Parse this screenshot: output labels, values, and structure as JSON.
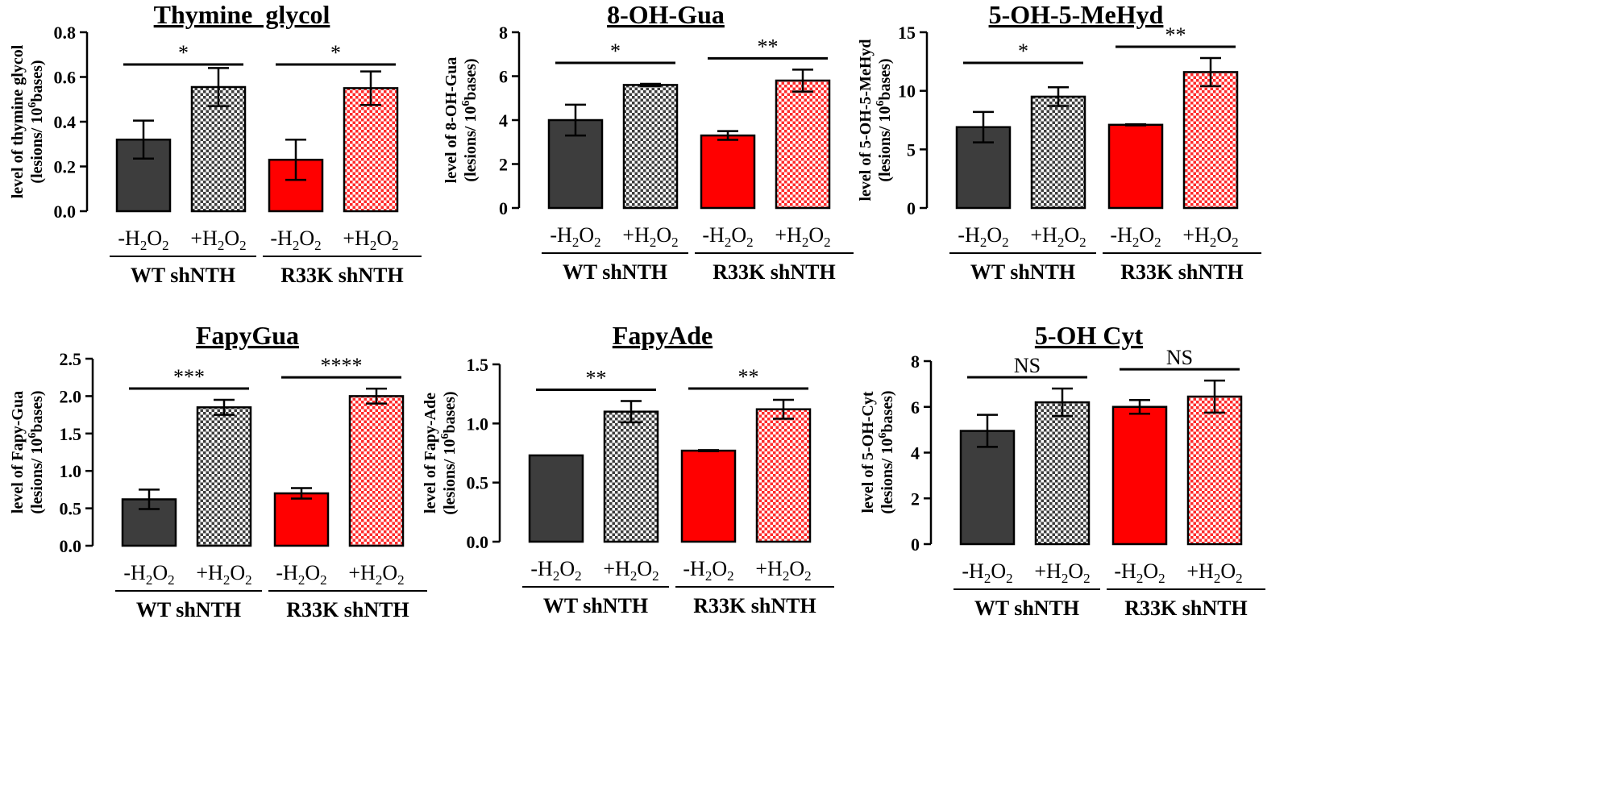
{
  "figure": {
    "categories": [
      "-H2O2",
      "+H2O2",
      "-H2O2",
      "+H2O2"
    ],
    "groups": [
      "WT shNTH",
      "R33K shNTH"
    ],
    "series_fill": [
      {
        "color": "#3d3d3d",
        "pattern": "solid"
      },
      {
        "color": "#3d3d3d",
        "pattern": "checker"
      },
      {
        "color": "#ff0000",
        "pattern": "solid"
      },
      {
        "color": "#ff0000",
        "pattern": "checker"
      }
    ]
  },
  "chart_data": [
    {
      "type": "bar",
      "title": "Thymine  glycol",
      "ylabel_1": "level of thymine glycol",
      "ylabel_2": "(lesions/ 10",
      "ylabel_exp": "6",
      "ylabel_3": "bases)",
      "ylim": [
        0,
        0.8
      ],
      "yticks": [
        0,
        0.2,
        0.4,
        0.6,
        0.8
      ],
      "tick_labels": [
        "0.0",
        "0.2",
        "0.4",
        "0.6",
        "0.8"
      ],
      "values": [
        0.32,
        0.555,
        0.23,
        0.55
      ],
      "errors": [
        0.085,
        0.085,
        0.09,
        0.075
      ],
      "significance": [
        "*",
        "*"
      ]
    },
    {
      "type": "bar",
      "title": "8-OH-Gua",
      "ylabel_1": "level of 8-OH-Gua",
      "ylabel_2": "(lesions/ 10",
      "ylabel_exp": "6",
      "ylabel_3": "bases)",
      "ylim": [
        0,
        8
      ],
      "yticks": [
        0,
        2,
        4,
        6,
        8
      ],
      "tick_labels": [
        "0",
        "2",
        "4",
        "6",
        "8"
      ],
      "values": [
        4.0,
        5.6,
        3.3,
        5.8
      ],
      "errors": [
        0.7,
        0.05,
        0.2,
        0.5
      ],
      "significance": [
        "*",
        "**"
      ]
    },
    {
      "type": "bar",
      "title": "5-OH-5-MeHyd",
      "ylabel_1": "level of 5-OH-5-MeHyd",
      "ylabel_2": "(lesions/ 10",
      "ylabel_exp": "6",
      "ylabel_3": "bases)",
      "ylim": [
        0,
        15
      ],
      "yticks": [
        0,
        5,
        10,
        15
      ],
      "tick_labels": [
        "0",
        "5",
        "10",
        "15"
      ],
      "values": [
        6.9,
        9.5,
        7.1,
        11.6
      ],
      "errors": [
        1.3,
        0.8,
        0.05,
        1.2
      ],
      "significance": [
        "*",
        "**"
      ]
    },
    {
      "type": "bar",
      "title": "FapyGua",
      "ylabel_1": "level of Fapy-Gua",
      "ylabel_2": "(lesions/ 10",
      "ylabel_exp": "6",
      "ylabel_3": "bases)",
      "ylim": [
        0,
        2.5
      ],
      "yticks": [
        0,
        0.5,
        1.0,
        1.5,
        2.0,
        2.5
      ],
      "tick_labels": [
        "0.0",
        "0.5",
        "1.0",
        "1.5",
        "2.0",
        "2.5"
      ],
      "values": [
        0.62,
        1.85,
        0.7,
        2.0
      ],
      "errors": [
        0.13,
        0.1,
        0.07,
        0.1
      ],
      "significance": [
        "***",
        "****"
      ]
    },
    {
      "type": "bar",
      "title": "FapyAde",
      "ylabel_1": "level of Fapy-Ade",
      "ylabel_2": "(lesions/ 10",
      "ylabel_exp": "6",
      "ylabel_3": "bases)",
      "ylim": [
        0,
        1.5
      ],
      "yticks": [
        0,
        0.5,
        1.0,
        1.5
      ],
      "tick_labels": [
        "0.0",
        "0.5",
        "1.0",
        "1.5"
      ],
      "values": [
        0.73,
        1.1,
        0.77,
        1.12
      ],
      "errors": [
        0.0,
        0.09,
        0.005,
        0.08
      ],
      "significance": [
        "**",
        "**"
      ]
    },
    {
      "type": "bar",
      "title": "5-OH Cyt",
      "ylabel_1": "level of 5-OH-Cyt",
      "ylabel_2": "(lesions/ 10",
      "ylabel_exp": "6",
      "ylabel_3": "bases)",
      "ylim": [
        0,
        8
      ],
      "yticks": [
        0,
        2,
        4,
        6,
        8
      ],
      "tick_labels": [
        "0",
        "2",
        "4",
        "6",
        "8"
      ],
      "values": [
        4.95,
        6.2,
        6.0,
        6.45
      ],
      "errors": [
        0.7,
        0.6,
        0.3,
        0.7
      ],
      "significance": [
        "NS",
        "NS"
      ]
    }
  ]
}
